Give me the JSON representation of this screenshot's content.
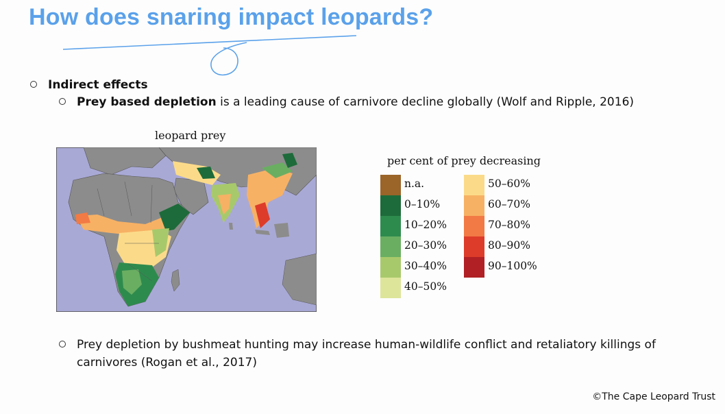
{
  "slide": {
    "title": "How does snaring impact leopards?",
    "bullet1": {
      "label": "Indirect effects"
    },
    "bullet2": {
      "bold": "Prey based depletion",
      "text": " is a leading cause of carnivore decline globally (Wolf and Ripple, 2016)"
    },
    "bullet3": {
      "line1": "Prey depletion by bushmeat hunting may increase human-wildlife conflict and retaliatory killings of",
      "line2": "carnivores (Rogan et al., 2017)"
    },
    "credit": "©The Cape Leopard Trust"
  },
  "figure": {
    "map_caption": "leopard prey",
    "legend_title": "per cent of prey decreasing",
    "legend": [
      {
        "label": "n.a.",
        "color": "#9b6429"
      },
      {
        "label": "0–10%",
        "color": "#1d6b3a"
      },
      {
        "label": "10–20%",
        "color": "#2e8b4e"
      },
      {
        "label": "20–30%",
        "color": "#6aae62"
      },
      {
        "label": "30–40%",
        "color": "#a8c96b"
      },
      {
        "label": "40–50%",
        "color": "#dde59a"
      },
      {
        "label": "50–60%",
        "color": "#fbdb8a"
      },
      {
        "label": "60–70%",
        "color": "#f7b164"
      },
      {
        "label": "70–80%",
        "color": "#f27a45"
      },
      {
        "label": "80–90%",
        "color": "#de3c2a"
      },
      {
        "label": "90–100%",
        "color": "#b02024"
      }
    ]
  }
}
